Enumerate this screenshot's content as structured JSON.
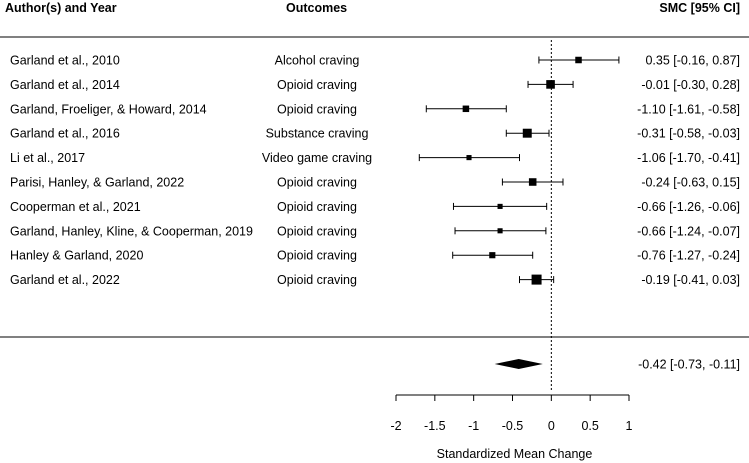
{
  "chart_data": {
    "type": "forest",
    "headers": {
      "study": "Author(s) and Year",
      "outcome": "Outcomes",
      "effect": "SMC [95% CI]"
    },
    "studies": [
      {
        "label": "Garland et al., 2010",
        "outcome": "Alcohol craving",
        "smc": 0.35,
        "lower": -0.16,
        "upper": 0.87,
        "ci_text": "0.35 [-0.16,  0.87]",
        "weight_rel": 0.5
      },
      {
        "label": "Garland et al., 2014",
        "outcome": "Opioid craving",
        "smc": -0.01,
        "lower": -0.3,
        "upper": 0.28,
        "ci_text": "-0.01 [-0.30,  0.28]",
        "weight_rel": 0.8
      },
      {
        "label": "Garland, Froeliger, & Howard, 2014",
        "outcome": "Opioid craving",
        "smc": -1.1,
        "lower": -1.61,
        "upper": -0.58,
        "ci_text": "-1.10 [-1.61, -0.58]",
        "weight_rel": 0.5
      },
      {
        "label": "Garland et al., 2016",
        "outcome": "Substance craving",
        "smc": -0.31,
        "lower": -0.58,
        "upper": -0.03,
        "ci_text": "-0.31 [-0.58, -0.03]",
        "weight_rel": 0.85
      },
      {
        "label": "Li et al., 2017",
        "outcome": "Video game craving",
        "smc": -1.06,
        "lower": -1.7,
        "upper": -0.41,
        "ci_text": "-1.06 [-1.70, -0.41]",
        "weight_rel": 0.3
      },
      {
        "label": "Parisi, Hanley, & Garland, 2022",
        "outcome": "Opioid craving",
        "smc": -0.24,
        "lower": -0.63,
        "upper": 0.15,
        "ci_text": "-0.24 [-0.63,  0.15]",
        "weight_rel": 0.65
      },
      {
        "label": "Cooperman et al., 2021",
        "outcome": "Opioid craving",
        "smc": -0.66,
        "lower": -1.26,
        "upper": -0.06,
        "ci_text": "-0.66 [-1.26, -0.06]",
        "weight_rel": 0.3
      },
      {
        "label": "Garland, Hanley, Kline, & Cooperman, 2019",
        "outcome": "Opioid craving",
        "smc": -0.66,
        "lower": -1.24,
        "upper": -0.07,
        "ci_text": "-0.66 [-1.24, -0.07]",
        "weight_rel": 0.3
      },
      {
        "label": "Hanley & Garland, 2020",
        "outcome": "Opioid craving",
        "smc": -0.76,
        "lower": -1.27,
        "upper": -0.24,
        "ci_text": "-0.76 [-1.27, -0.24]",
        "weight_rel": 0.45
      },
      {
        "label": "Garland et al., 2022",
        "outcome": "Opioid craving",
        "smc": -0.19,
        "lower": -0.41,
        "upper": 0.03,
        "ci_text": "-0.19 [-0.41,  0.03]",
        "weight_rel": 1.0
      }
    ],
    "summary": {
      "smc": -0.42,
      "lower": -0.73,
      "upper": -0.11,
      "ci_text": "-0.42 [-0.73, -0.11]"
    },
    "xaxis": {
      "label": "Standardized Mean Change",
      "xlim": [
        -2,
        1
      ],
      "ticks": [
        -2,
        -1.5,
        -1,
        -0.5,
        0,
        0.5,
        1
      ],
      "tick_labels": [
        "-2",
        "-1.5",
        "-1",
        "-0.5",
        "0",
        "0.5",
        "1"
      ],
      "reference_line": 0
    }
  }
}
